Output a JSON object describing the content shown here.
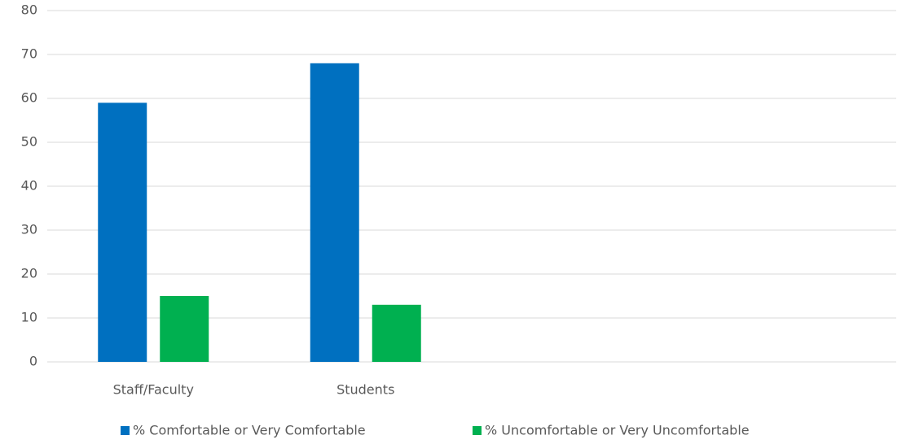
{
  "chart_data": {
    "type": "bar",
    "categories": [
      "Staff/Faculty",
      "Students",
      null,
      null
    ],
    "series": [
      {
        "name": "% Comfortable or Very Comfortable",
        "color": "#0070c0",
        "values": [
          59,
          68,
          null,
          null
        ]
      },
      {
        "name": "% Uncomfortable or Very Uncomfortable",
        "color": "#00b050",
        "values": [
          15,
          13,
          null,
          null
        ]
      }
    ],
    "ylim": [
      0,
      80
    ],
    "yticks": [
      0,
      10,
      20,
      30,
      40,
      50,
      60,
      70,
      80
    ],
    "grid": true,
    "legend": "bottom"
  }
}
